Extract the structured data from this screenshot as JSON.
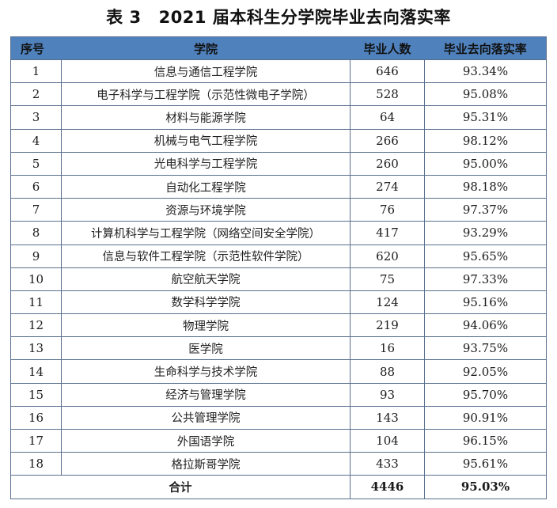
{
  "title": {
    "label": "表 3",
    "text": "2021 届本科生分学院毕业去向落实率"
  },
  "table": {
    "header_color": "#4f81bd",
    "border_color": "#5a6f8e",
    "columns": [
      "序号",
      "学院",
      "毕业人数",
      "毕业去向落实率"
    ],
    "rows": [
      {
        "no": "1",
        "college": "信息与通信工程学院",
        "graduates": "646",
        "rate": "93.34%"
      },
      {
        "no": "2",
        "college": "电子科学与工程学院（示范性微电子学院）",
        "graduates": "528",
        "rate": "95.08%"
      },
      {
        "no": "3",
        "college": "材料与能源学院",
        "graduates": "64",
        "rate": "95.31%"
      },
      {
        "no": "4",
        "college": "机械与电气工程学院",
        "graduates": "266",
        "rate": "98.12%"
      },
      {
        "no": "5",
        "college": "光电科学与工程学院",
        "graduates": "260",
        "rate": "95.00%"
      },
      {
        "no": "6",
        "college": "自动化工程学院",
        "graduates": "274",
        "rate": "98.18%"
      },
      {
        "no": "7",
        "college": "资源与环境学院",
        "graduates": "76",
        "rate": "97.37%"
      },
      {
        "no": "8",
        "college": "计算机科学与工程学院（网络空间安全学院）",
        "graduates": "417",
        "rate": "93.29%"
      },
      {
        "no": "9",
        "college": "信息与软件工程学院（示范性软件学院）",
        "graduates": "620",
        "rate": "95.65%"
      },
      {
        "no": "10",
        "college": "航空航天学院",
        "graduates": "75",
        "rate": "97.33%"
      },
      {
        "no": "11",
        "college": "数学科学学院",
        "graduates": "124",
        "rate": "95.16%"
      },
      {
        "no": "12",
        "college": "物理学院",
        "graduates": "219",
        "rate": "94.06%"
      },
      {
        "no": "13",
        "college": "医学院",
        "graduates": "16",
        "rate": "93.75%"
      },
      {
        "no": "14",
        "college": "生命科学与技术学院",
        "graduates": "88",
        "rate": "92.05%"
      },
      {
        "no": "15",
        "college": "经济与管理学院",
        "graduates": "93",
        "rate": "95.70%"
      },
      {
        "no": "16",
        "college": "公共管理学院",
        "graduates": "143",
        "rate": "90.91%"
      },
      {
        "no": "17",
        "college": "外国语学院",
        "graduates": "104",
        "rate": "96.15%"
      },
      {
        "no": "18",
        "college": "格拉斯哥学院",
        "graduates": "433",
        "rate": "95.61%"
      }
    ],
    "total": {
      "label": "合计",
      "graduates": "4446",
      "rate": "95.03%"
    }
  }
}
